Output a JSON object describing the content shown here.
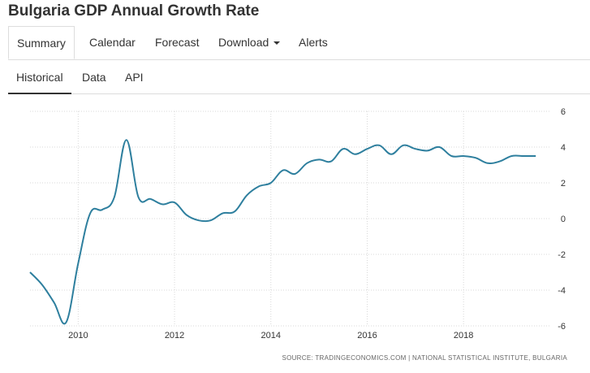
{
  "page_title": "Bulgaria GDP Annual Growth Rate",
  "top_tabs": [
    "Summary",
    "Calendar",
    "Forecast",
    "Download",
    "Alerts"
  ],
  "sub_tabs": [
    "Historical",
    "Data",
    "API"
  ],
  "source_text": "SOURCE: TRADINGECONOMICS.COM | NATIONAL STATISTICAL INSTITUTE, BULGARIA",
  "colors": {
    "line": "#2e7f9e",
    "grid": "#d8d8d8",
    "text": "#333333"
  },
  "icons": {
    "download_dropdown": "chevron-down-icon"
  },
  "chart_data": {
    "type": "line",
    "title": "",
    "xlabel": "",
    "ylabel": "",
    "x_ticks": [
      "2010",
      "2012",
      "2014",
      "2016",
      "2018"
    ],
    "y_ticks": [
      "6",
      "4",
      "2",
      "0",
      "-2",
      "-4",
      "-6"
    ],
    "xlim": [
      2009.0,
      2019.8
    ],
    "ylim": [
      -6,
      6
    ],
    "y_axis_position": "right",
    "grid": true,
    "series": [
      {
        "x": [
          2009.0,
          2009.25,
          2009.5,
          2009.75,
          2010.0,
          2010.25,
          2010.5,
          2010.75,
          2011.0,
          2011.25,
          2011.5,
          2011.75,
          2012.0,
          2012.25,
          2012.5,
          2012.75,
          2013.0,
          2013.25,
          2013.5,
          2013.75,
          2014.0,
          2014.25,
          2014.5,
          2014.75,
          2015.0,
          2015.25,
          2015.5,
          2015.75,
          2016.0,
          2016.25,
          2016.5,
          2016.75,
          2017.0,
          2017.25,
          2017.5,
          2017.75,
          2018.0,
          2018.25,
          2018.5,
          2018.75,
          2019.0,
          2019.25,
          2019.5
        ],
        "values": [
          -3.0,
          -3.7,
          -4.7,
          -5.8,
          -2.5,
          0.3,
          0.5,
          1.2,
          4.4,
          1.2,
          1.1,
          0.8,
          0.9,
          0.2,
          -0.1,
          -0.1,
          0.3,
          0.4,
          1.3,
          1.8,
          2.0,
          2.7,
          2.5,
          3.1,
          3.3,
          3.2,
          3.9,
          3.6,
          3.9,
          4.1,
          3.6,
          4.1,
          3.9,
          3.8,
          4.0,
          3.5,
          3.5,
          3.4,
          3.1,
          3.2,
          3.5,
          3.5,
          3.5
        ]
      }
    ]
  }
}
